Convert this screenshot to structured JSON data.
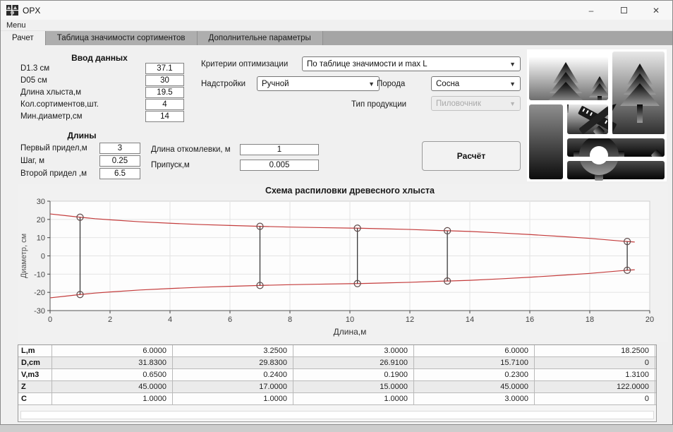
{
  "window": {
    "title": "OPX",
    "menu_label": "Menu",
    "controls": {
      "minimize": "–",
      "close": "✕"
    }
  },
  "tabs": [
    {
      "label": "Рачет",
      "active": true
    },
    {
      "label": "Таблица значимости сортиментов",
      "active": false
    },
    {
      "label": "Дополнительне параметры",
      "active": false
    }
  ],
  "input_group": {
    "title": "Ввод данных",
    "fields": [
      {
        "label": "D1.3 см",
        "value": "37.1"
      },
      {
        "label": "D05 см",
        "value": "30"
      },
      {
        "label": "Длина хлыста,м",
        "value": "19.5"
      },
      {
        "label": "Кол.сортиментов,шт.",
        "value": "4"
      },
      {
        "label": "Мин.диаметр,см",
        "value": "14"
      }
    ]
  },
  "lengths_group": {
    "title": "Длины",
    "fields": [
      {
        "label": "Первый придел,м",
        "value": "3"
      },
      {
        "label": "Шаг, м",
        "value": "0.25"
      },
      {
        "label": "Второй придел ,м",
        "value": "6.5"
      }
    ]
  },
  "extra_fields": [
    {
      "label": "Длина откомлевки, м",
      "value": "1"
    },
    {
      "label": "Припуск,м",
      "value": "0.005"
    }
  ],
  "dropdowns": {
    "criteria": {
      "label": "Критерии оптимизации",
      "value": "По таблице значимости и max L"
    },
    "addons": {
      "label": "Надстройки",
      "value": "Ручной"
    },
    "species": {
      "label": "Порода",
      "value": "Сосна"
    },
    "product": {
      "label": "Тип продукции",
      "value": "Пиловочник",
      "disabled": true
    }
  },
  "calc_button_label": "Расчёт",
  "chart_data": {
    "type": "line",
    "title": "Схема распиловки древесного хлыста",
    "xlabel": "Длина,м",
    "ylabel": "Диаметр, см",
    "xlim": [
      0,
      20
    ],
    "ylim": [
      -30,
      30
    ],
    "xticks": [
      0,
      2,
      4,
      6,
      8,
      10,
      12,
      14,
      16,
      18,
      20
    ],
    "yticks": [
      -30,
      -20,
      -10,
      0,
      10,
      20,
      30
    ],
    "grid": true,
    "legend": "none",
    "colors": {
      "profile": "#c43c3c",
      "cut_line": "#3a3a3a",
      "marker": "#5f4a4a"
    },
    "profile": {
      "comment": "stem profile, radius (cm) mirrored about 0 to show diameter envelope",
      "x": [
        0,
        0.5,
        1,
        1.5,
        2,
        3,
        4,
        5,
        6,
        7,
        8,
        9,
        10,
        10.25,
        11,
        12,
        13,
        13.25,
        14,
        15,
        16,
        17,
        18,
        19,
        19.25,
        19.5
      ],
      "r": [
        23,
        22.1,
        21.2,
        20.4,
        19.8,
        18.7,
        17.9,
        17.2,
        16.7,
        16.2,
        15.8,
        15.5,
        15.25,
        15.2,
        14.9,
        14.5,
        13.9,
        13.8,
        13.4,
        12.6,
        11.7,
        10.7,
        9.6,
        8.2,
        7.9,
        7.6
      ]
    },
    "cuts": [
      {
        "x": 1,
        "r": 21.2
      },
      {
        "x": 7,
        "r": 16.2
      },
      {
        "x": 10.25,
        "r": 15.2
      },
      {
        "x": 13.25,
        "r": 13.8
      },
      {
        "x": 19.25,
        "r": 7.9
      }
    ]
  },
  "results_table": {
    "rows": [
      {
        "header": "L,m",
        "values": [
          "6.0000",
          "3.2500",
          "3.0000",
          "6.0000",
          "18.2500"
        ]
      },
      {
        "header": "D,cm",
        "values": [
          "31.8300",
          "29.8300",
          "26.9100",
          "15.7100",
          "0"
        ]
      },
      {
        "header": "V,m3",
        "values": [
          "0.6500",
          "0.2400",
          "0.1900",
          "0.2300",
          "1.3100"
        ]
      },
      {
        "header": "Z",
        "values": [
          "45.0000",
          "17.0000",
          "15.0000",
          "45.0000",
          "122.0000"
        ]
      },
      {
        "header": "C",
        "values": [
          "1.0000",
          "1.0000",
          "1.0000",
          "3.0000",
          "0"
        ]
      }
    ]
  }
}
